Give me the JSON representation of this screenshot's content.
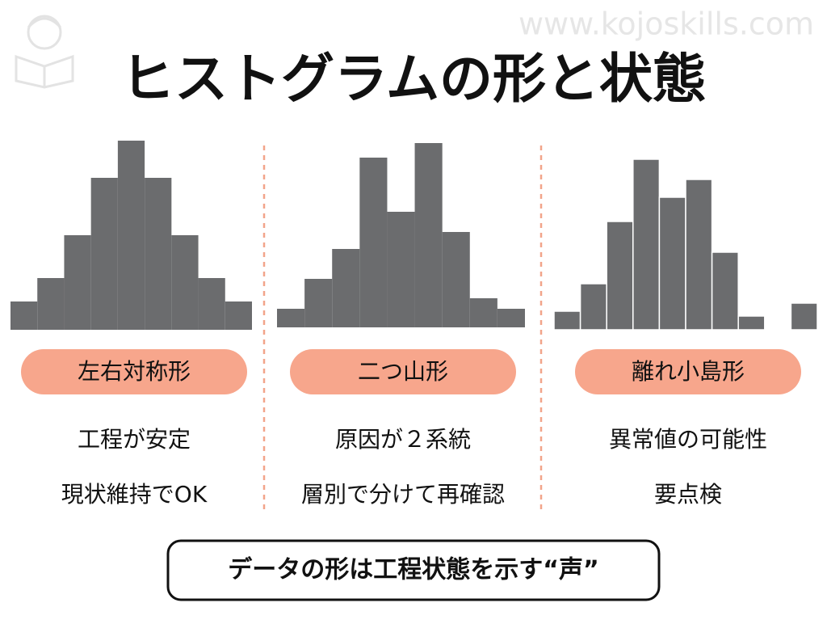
{
  "header": {
    "title": "ヒストグラムの形と状態",
    "watermark": "www.kojoskills.com"
  },
  "chart_data": [
    {
      "type": "bar",
      "categories": [
        null,
        null,
        null,
        null,
        null,
        null,
        null,
        null,
        null
      ],
      "values": [
        35,
        64,
        117,
        188,
        234,
        188,
        117,
        64,
        35
      ],
      "color": "#6b6c6e"
    },
    {
      "type": "bar",
      "categories": [
        null,
        null,
        null,
        null,
        null,
        null,
        null,
        null,
        null
      ],
      "values": [
        23,
        60,
        97,
        210,
        143,
        228,
        118,
        36,
        23
      ],
      "color": "#6b6c6e"
    },
    {
      "type": "bar",
      "categories": [
        null,
        null,
        null,
        null,
        null,
        null,
        null,
        null,
        null,
        null
      ],
      "values": [
        23,
        57,
        134,
        211,
        164,
        186,
        96,
        17,
        0,
        33
      ],
      "color": "#6b6c6e",
      "edgecolor": "#ffffff"
    }
  ],
  "panels": [
    {
      "label": "左右対称形",
      "notes": [
        "工程が安定",
        "現状維持でOK"
      ]
    },
    {
      "label": "二つ山形",
      "notes": [
        "原因が２系統",
        "層別で分けて再確認"
      ]
    },
    {
      "label": "離れ小島形",
      "notes": [
        "異常値の可能性",
        "要点検"
      ]
    }
  ],
  "footer": "データの形は工程状態を示す“声”"
}
